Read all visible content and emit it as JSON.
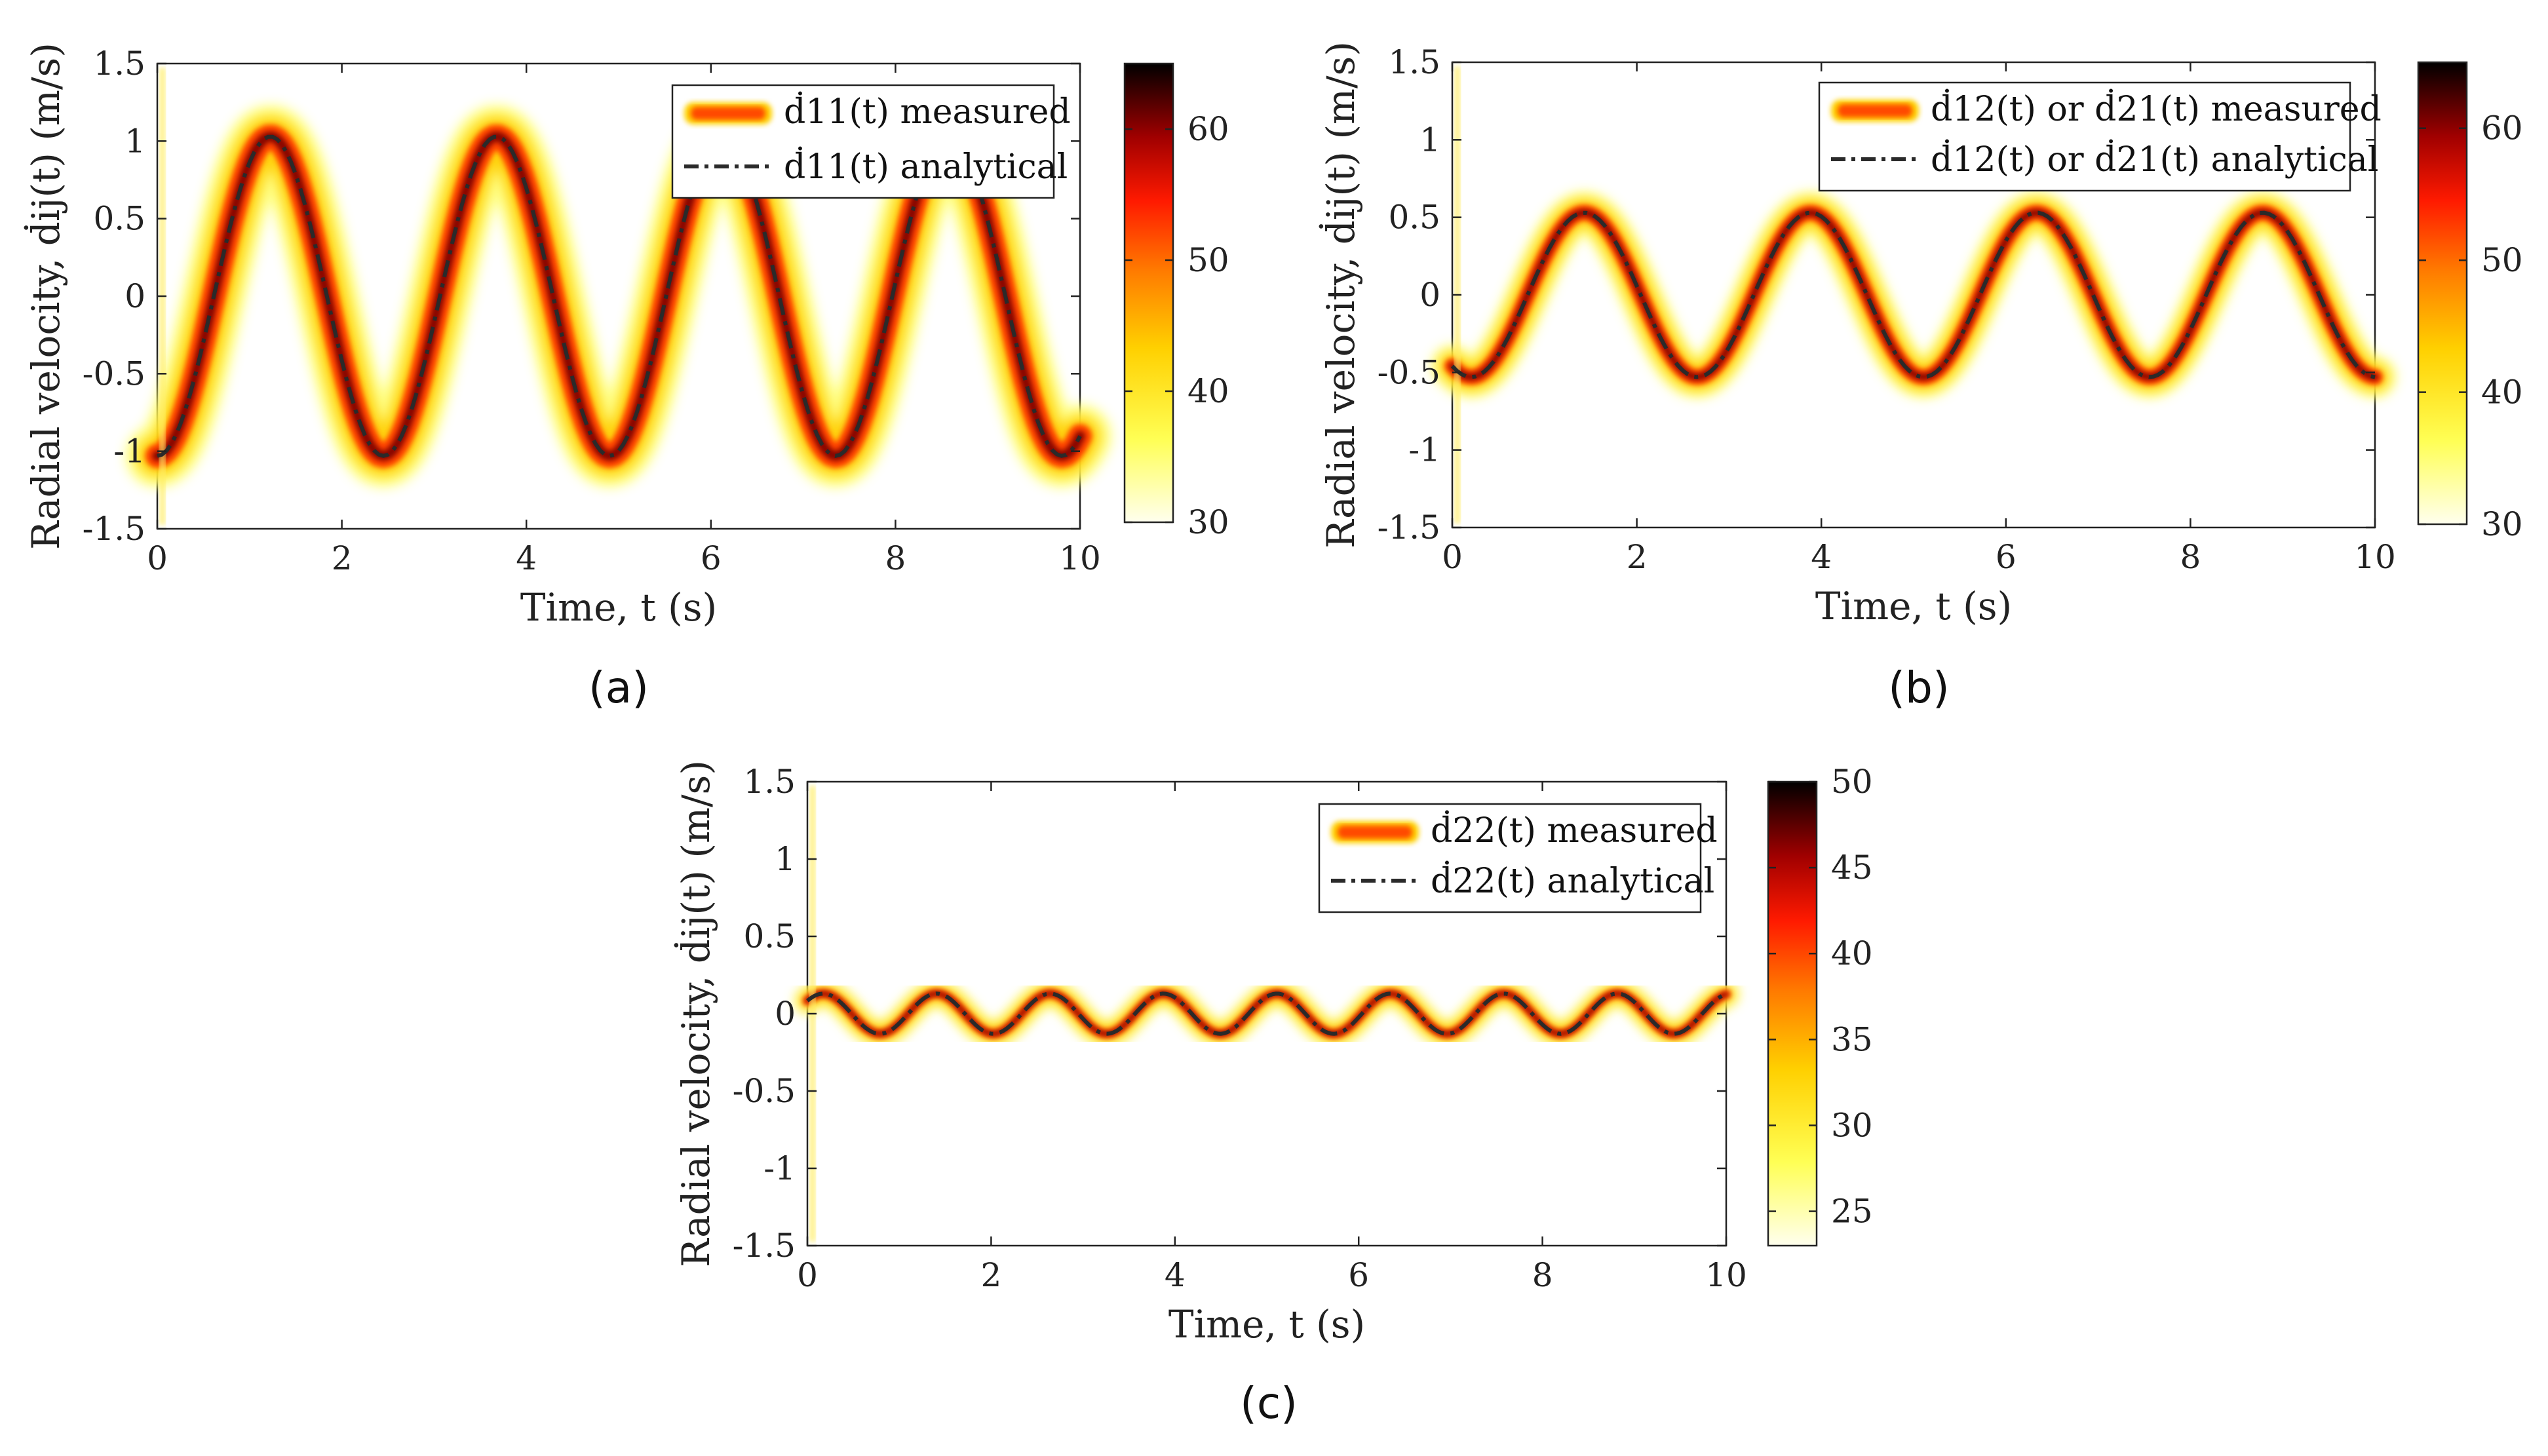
{
  "chart_data": [
    {
      "type": "heatmap",
      "panel_label": "(a)",
      "subplot_label": "a",
      "xlabel": "Time, t (s)",
      "ylabel": "Radial velocity, ḋij(t) (m/s)",
      "xlim": [
        0,
        10
      ],
      "ylim": [
        -1.5,
        1.5
      ],
      "xticks": [
        "0",
        "2",
        "4",
        "6",
        "8",
        "10"
      ],
      "yticks": [
        "1.5",
        "1",
        "0.5",
        "0",
        "-0.5",
        "-1",
        "-1.5"
      ],
      "legend": [
        "ḋ11(t) measured",
        "ḋ11(t) analytical"
      ],
      "legend_position": "top-right",
      "colorbar": {
        "min": 30,
        "max": 65,
        "ticks": [
          "60",
          "50",
          "40",
          "30"
        ]
      },
      "analytical": {
        "amplitude": 1.03,
        "frequency_hz": 0.408,
        "phase_deg": -90,
        "samples": 201
      },
      "measured_spread": 0.12
    },
    {
      "type": "heatmap",
      "panel_label": "(b)",
      "subplot_label": "b",
      "xlabel": "Time, t (s)",
      "ylabel": "Radial velocity, ḋij(t) (m/s)",
      "xlim": [
        0,
        10
      ],
      "ylim": [
        -1.5,
        1.5
      ],
      "xticks": [
        "0",
        "2",
        "4",
        "6",
        "8",
        "10"
      ],
      "yticks": [
        "1.5",
        "1",
        "0.5",
        "0",
        "-0.5",
        "-1",
        "-1.5"
      ],
      "legend": [
        "ḋ12(t) or ḋ21(t) measured",
        "ḋ12(t) or ḋ21(t) analytical"
      ],
      "legend_position": "top-right",
      "colorbar": {
        "min": 30,
        "max": 65,
        "ticks": [
          "60",
          "50",
          "40",
          "30"
        ]
      },
      "analytical": {
        "amplitude": 0.53,
        "frequency_hz": 0.408,
        "phase_deg": -120,
        "samples": 201
      },
      "measured_spread": 0.08
    },
    {
      "type": "heatmap",
      "panel_label": "(c)",
      "subplot_label": "c",
      "xlabel": "Time, t (s)",
      "ylabel": "Radial velocity, ḋij(t) (m/s)",
      "xlim": [
        0,
        10
      ],
      "ylim": [
        -1.5,
        1.5
      ],
      "xticks": [
        "0",
        "2",
        "4",
        "6",
        "8",
        "10"
      ],
      "yticks": [
        "1.5",
        "1",
        "0.5",
        "0",
        "-0.5",
        "-1",
        "-1.5"
      ],
      "legend": [
        "ḋ22(t) measured",
        "ḋ22(t) analytical"
      ],
      "legend_position": "top-right",
      "colorbar": {
        "min": 23,
        "max": 50,
        "ticks": [
          "50",
          "45",
          "40",
          "35",
          "30",
          "25"
        ]
      },
      "analytical": {
        "amplitude": 0.13,
        "frequency_hz": 0.81,
        "phase_deg": 40,
        "samples": 301
      },
      "measured_spread": 0.05
    }
  ],
  "colors": {
    "analytical_line": "#2a2a2a",
    "axis": "#222222",
    "heat_stops": [
      "#ffffe0",
      "#ffff33",
      "#ffd000",
      "#ff8c00",
      "#ff2a00",
      "#b30000",
      "#330000",
      "#000000"
    ]
  }
}
